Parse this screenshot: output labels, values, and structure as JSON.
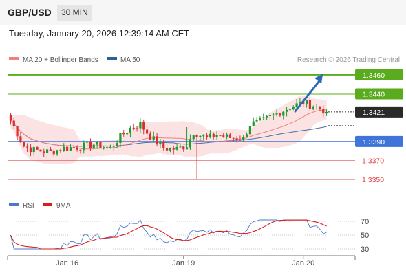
{
  "header": {
    "symbol": "GBP/USD",
    "timeframe": "30 MIN",
    "datetime": "Tuesday, January 20, 2026 12:39:14 AM CET"
  },
  "legend": {
    "ma20": "MA 20 + Bollinger Bands",
    "ma50": "MA 50",
    "source": "Research © 2026 Trading Central"
  },
  "rsi_legend": {
    "rsi": "RSI",
    "ma9": "9MA"
  },
  "colors": {
    "up": "#1f9a2e",
    "down": "#d93030",
    "resistance": "#5aab1e",
    "support": "#3f74d8",
    "target": "#e04848",
    "ma20": "#f08080",
    "ma50": "#4a6fa8",
    "bands": "#fbdede",
    "arrow": "#2e69b8"
  },
  "chart_data": [
    {
      "type": "candlestick",
      "title": "",
      "ylim": [
        1.3335,
        1.347
      ],
      "xlim": [
        0,
        96
      ],
      "x_ticks": [
        {
          "x": 17,
          "label": "Jan 16"
        },
        {
          "x": 52,
          "label": "Jan 19"
        },
        {
          "x": 88,
          "label": "Jan 20"
        }
      ],
      "last_price": "1.3421",
      "levels": [
        {
          "label": "1.3460",
          "value": 1.346,
          "kind": "resistance",
          "badge": true
        },
        {
          "label": "1.3440",
          "value": 1.344,
          "kind": "resistance",
          "badge": true
        },
        {
          "label": "1.3390",
          "value": 1.339,
          "kind": "support",
          "badge": true
        },
        {
          "label": "1.3370",
          "value": 1.337,
          "kind": "target",
          "badge": false
        },
        {
          "label": "1.3350",
          "value": 1.335,
          "kind": "target",
          "badge": false
        }
      ],
      "forecast_arrow": {
        "from": [
          85,
          1.3421
        ],
        "to": [
          92,
          1.3458
        ]
      }
    },
    {
      "type": "line",
      "title": "",
      "ylim": [
        20,
        80
      ],
      "y_ticks": [
        70,
        50,
        30
      ],
      "series": [
        {
          "name": "RSI"
        },
        {
          "name": "9MA"
        }
      ]
    }
  ]
}
